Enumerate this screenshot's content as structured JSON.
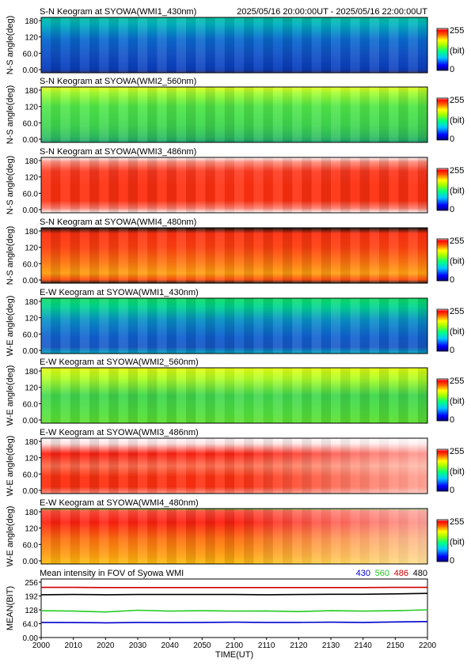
{
  "header": {
    "time_range": "2025/05/16 20:00:00UT - 2025/05/16 22:00:00UT"
  },
  "colorbar": {
    "ticks": [
      "255",
      "(bit)",
      "0"
    ]
  },
  "chart_data": [
    {
      "type": "heatmap",
      "title": "S-N Keogram at SYOWA(WMI1_430nm)",
      "ylabel": "N-S angle(deg)",
      "yticks": [
        "180",
        "120",
        "60.0",
        "0.00"
      ],
      "ylim": [
        0,
        180
      ],
      "xlim": [
        2000,
        2200
      ],
      "base_level": 95,
      "colormap": "rainbow",
      "zlim": [
        0,
        255
      ]
    },
    {
      "type": "heatmap",
      "title": "S-N Keogram at SYOWA(WMI2_560nm)",
      "ylabel": "N-S angle(deg)",
      "yticks": [
        "180",
        "120",
        "60.0",
        "0.00"
      ],
      "ylim": [
        0,
        180
      ],
      "xlim": [
        2000,
        2200
      ],
      "base_level": 120,
      "colormap": "rainbow",
      "zlim": [
        0,
        255
      ]
    },
    {
      "type": "heatmap",
      "title": "S-N Keogram at SYOWA(WMI3_486nm)",
      "ylabel": "N-S angle(deg)",
      "yticks": [
        "180",
        "120",
        "60.0",
        "0.00"
      ],
      "ylim": [
        0,
        180
      ],
      "xlim": [
        2000,
        2200
      ],
      "base_level": 225,
      "colormap": "rainbow",
      "zlim": [
        0,
        255
      ]
    },
    {
      "type": "heatmap",
      "title": "S-N Keogram at SYOWA(WMI4_480nm)",
      "ylabel": "N-S angle(deg)",
      "yticks": [
        "180",
        "120",
        "60.0",
        "0.00"
      ],
      "ylim": [
        0,
        180
      ],
      "xlim": [
        2000,
        2200
      ],
      "base_level": 200,
      "colormap": "rainbow",
      "zlim": [
        0,
        255
      ]
    },
    {
      "type": "heatmap",
      "title": "E-W Keogram at SYOWA(WMI1_430nm)",
      "ylabel": "W-E angle(deg)",
      "yticks": [
        "180",
        "120",
        "60.0",
        "0.00"
      ],
      "ylim": [
        0,
        180
      ],
      "xlim": [
        2000,
        2200
      ],
      "base_level": 95,
      "colormap": "rainbow",
      "zlim": [
        0,
        255
      ]
    },
    {
      "type": "heatmap",
      "title": "E-W Keogram at SYOWA(WMI2_560nm)",
      "ylabel": "W-E angle(deg)",
      "yticks": [
        "180",
        "120",
        "60.0",
        "0.00"
      ],
      "ylim": [
        0,
        180
      ],
      "xlim": [
        2000,
        2200
      ],
      "base_level": 120,
      "colormap": "rainbow",
      "zlim": [
        0,
        255
      ]
    },
    {
      "type": "heatmap",
      "title": "E-W Keogram at SYOWA(WMI3_486nm)",
      "ylabel": "W-E angle(deg)",
      "yticks": [
        "180",
        "120",
        "60.0",
        "0.00"
      ],
      "ylim": [
        0,
        180
      ],
      "xlim": [
        2000,
        2200
      ],
      "base_level": 235,
      "colormap": "rainbow",
      "zlim": [
        0,
        255
      ]
    },
    {
      "type": "heatmap",
      "title": "E-W Keogram at SYOWA(WMI4_480nm)",
      "ylabel": "W-E angle(deg)",
      "yticks": [
        "180",
        "120",
        "60.0",
        "0.00"
      ],
      "ylim": [
        0,
        180
      ],
      "xlim": [
        2000,
        2200
      ],
      "base_level": 215,
      "colormap": "rainbow",
      "zlim": [
        0,
        255
      ]
    },
    {
      "type": "line",
      "title": "Mean intensity in FOV of Syowa WMI",
      "ylabel": "MEAN(BIT)",
      "xlabel": "TIME(UT)",
      "yticks": [
        "256",
        "192",
        "128",
        "64.0",
        "0.00"
      ],
      "ylim": [
        0,
        256
      ],
      "xlim": [
        2000,
        2200
      ],
      "xticks": [
        "2000",
        "2010",
        "2020",
        "2030",
        "2040",
        "2050",
        "2100",
        "2110",
        "2120",
        "2130",
        "2140",
        "2150",
        "2200"
      ],
      "x": [
        2000,
        2010,
        2020,
        2030,
        2040,
        2050,
        2100,
        2110,
        2120,
        2130,
        2140,
        2150,
        2200
      ],
      "series": [
        {
          "name": "430",
          "color": "#0000cc",
          "values": [
            70,
            69,
            68,
            70,
            69,
            70,
            71,
            70,
            70,
            71,
            70,
            72,
            74
          ]
        },
        {
          "name": "560",
          "color": "#22cc22",
          "values": [
            124,
            122,
            118,
            126,
            122,
            124,
            122,
            123,
            120,
            124,
            122,
            124,
            128
          ]
        },
        {
          "name": "486",
          "color": "#cc0000",
          "values": [
            232,
            232,
            231,
            231,
            231,
            231,
            231,
            231,
            231,
            231,
            231,
            232,
            232
          ]
        },
        {
          "name": "480",
          "color": "#000000",
          "values": [
            198,
            199,
            198,
            199,
            199,
            199,
            199,
            198,
            199,
            200,
            200,
            202,
            204
          ]
        }
      ],
      "legend_position": "top-right"
    }
  ]
}
